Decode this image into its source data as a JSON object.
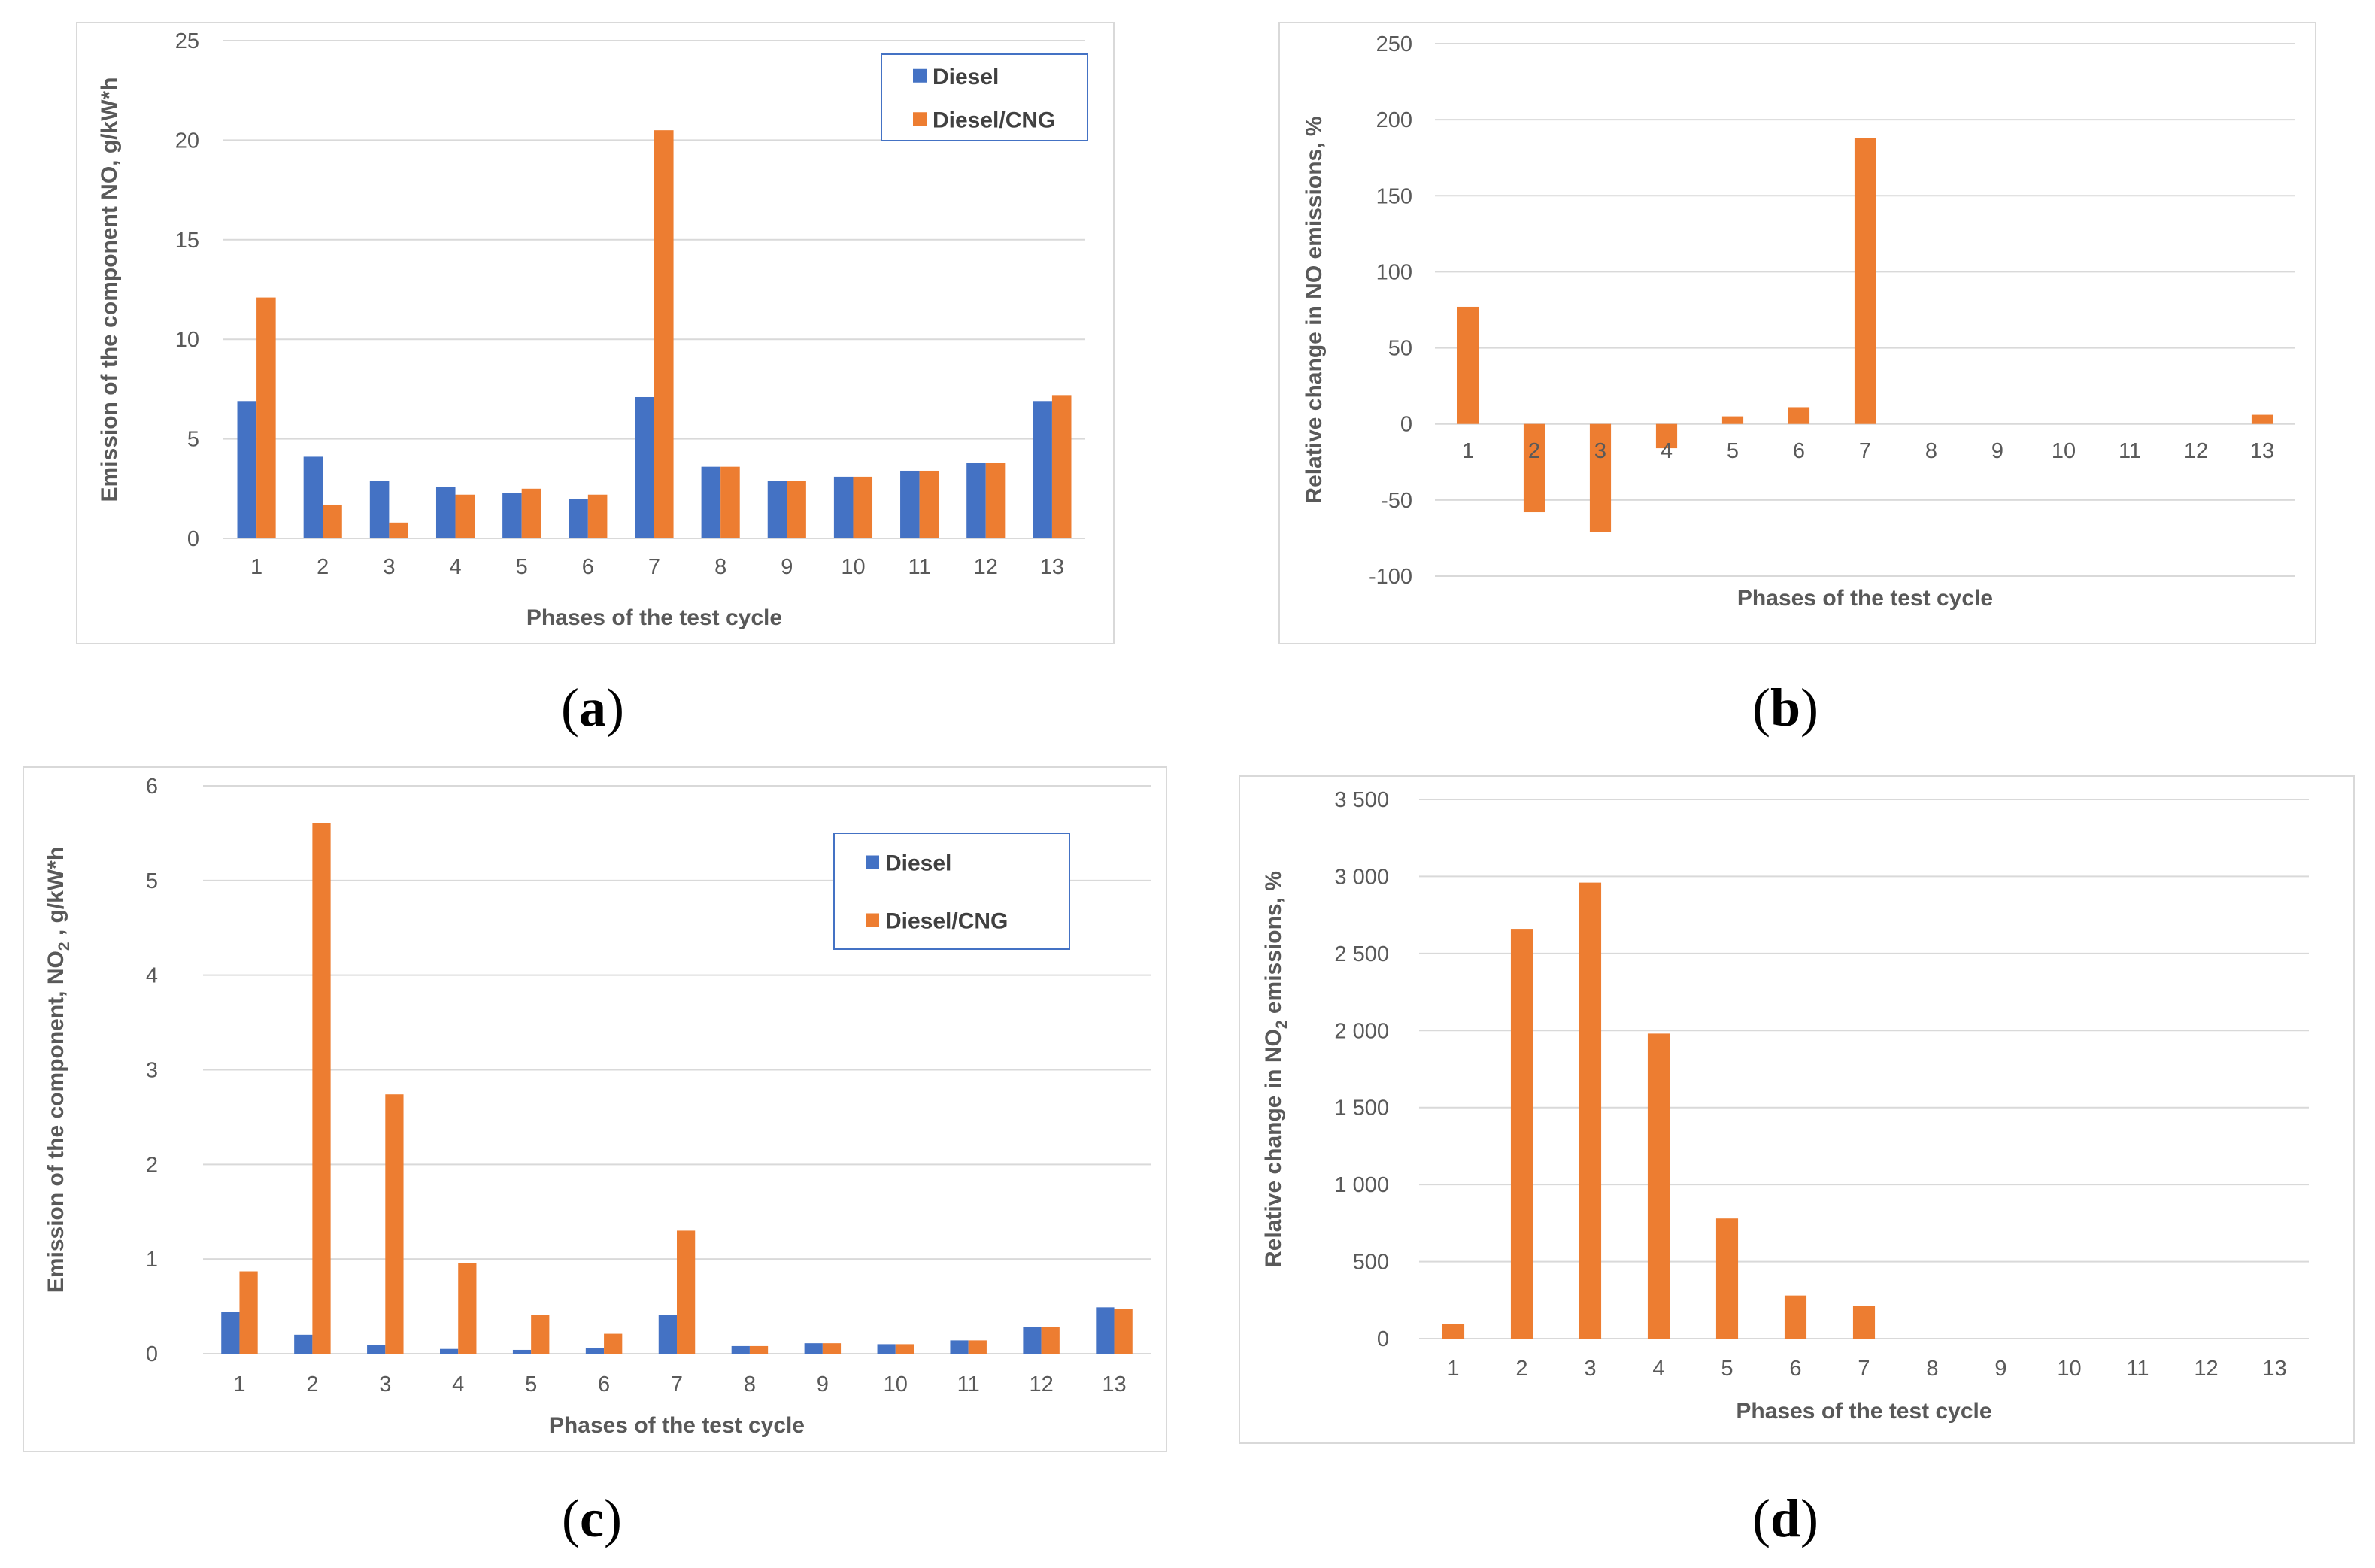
{
  "colors": {
    "diesel": "#4472C4",
    "dual": "#ED7D31",
    "grid": "#D9D9D9",
    "frame": "#D9D9D9",
    "legend_border": "#4472C4"
  },
  "panels": [
    "a",
    "b",
    "c",
    "d"
  ],
  "chart_data": [
    {
      "id": "a",
      "type": "bar",
      "ylabel": "Emission of the component NO, g/kW*h",
      "xlabel": "Phases of the test cycle",
      "categories": [
        "1",
        "2",
        "3",
        "4",
        "5",
        "6",
        "7",
        "8",
        "9",
        "10",
        "11",
        "12",
        "13"
      ],
      "ylim": [
        0,
        25
      ],
      "yticks": [
        0,
        5,
        10,
        15,
        20,
        25
      ],
      "ytick_labels": [
        "0",
        "5",
        "10",
        "15",
        "20",
        "25"
      ],
      "grid": true,
      "legend": "top-right",
      "series": [
        {
          "name": "Diesel",
          "color": "#4472C4",
          "values": [
            6.9,
            4.1,
            2.9,
            2.6,
            2.3,
            2.0,
            7.1,
            3.6,
            2.9,
            3.1,
            3.4,
            3.8,
            6.9
          ]
        },
        {
          "name": "Diesel/CNG",
          "color": "#ED7D31",
          "values": [
            12.1,
            1.7,
            0.8,
            2.2,
            2.5,
            2.2,
            20.5,
            3.6,
            2.9,
            3.1,
            3.4,
            3.8,
            7.2
          ]
        }
      ]
    },
    {
      "id": "b",
      "type": "bar",
      "ylabel": "Relative change in NO emissions, %",
      "xlabel": "Phases of the test cycle",
      "categories": [
        "1",
        "2",
        "3",
        "4",
        "5",
        "6",
        "7",
        "8",
        "9",
        "10",
        "11",
        "12",
        "13"
      ],
      "ylim": [
        -100,
        250
      ],
      "yticks": [
        -100,
        -50,
        0,
        50,
        100,
        150,
        200,
        250
      ],
      "ytick_labels": [
        "-100",
        "-50",
        "0",
        "50",
        "100",
        "150",
        "200",
        "250"
      ],
      "grid": true,
      "series": [
        {
          "color": "#ED7D31",
          "values": [
            77,
            -58,
            -71,
            -16,
            5,
            11,
            188,
            0,
            0,
            0,
            0,
            0,
            6
          ]
        }
      ]
    },
    {
      "id": "c",
      "type": "bar",
      "ylabel": "Emission of the component, NO",
      "ylabel_sub": "2",
      "ylabel_suffix": " , g/kW*h",
      "xlabel": "Phases of the test cycle",
      "categories": [
        "1",
        "2",
        "3",
        "4",
        "5",
        "6",
        "7",
        "8",
        "9",
        "10",
        "11",
        "12",
        "13"
      ],
      "ylim": [
        0,
        6
      ],
      "yticks": [
        0,
        1,
        2,
        3,
        4,
        5,
        6
      ],
      "ytick_labels": [
        "0",
        "1",
        "2",
        "3",
        "4",
        "5",
        "6"
      ],
      "grid": true,
      "legend": "top-right",
      "series": [
        {
          "name": "Diesel",
          "color": "#4472C4",
          "values": [
            0.44,
            0.2,
            0.09,
            0.05,
            0.04,
            0.06,
            0.41,
            0.08,
            0.11,
            0.1,
            0.14,
            0.28,
            0.49
          ]
        },
        {
          "name": "Diesel/CNG",
          "color": "#ED7D31",
          "values": [
            0.87,
            5.61,
            2.74,
            0.96,
            0.41,
            0.21,
            1.3,
            0.08,
            0.11,
            0.1,
            0.14,
            0.28,
            0.47
          ]
        }
      ]
    },
    {
      "id": "d",
      "type": "bar",
      "ylabel": "Relative change in NO",
      "ylabel_sub": "2",
      "ylabel_suffix": " emissions,  %",
      "xlabel": "Phases of the test cycle",
      "categories": [
        "1",
        "2",
        "3",
        "4",
        "5",
        "6",
        "7",
        "8",
        "9",
        "10",
        "11",
        "12",
        "13"
      ],
      "ylim": [
        0,
        3500
      ],
      "yticks": [
        0,
        500,
        1000,
        1500,
        2000,
        2500,
        3000,
        3500
      ],
      "ytick_labels": [
        "0",
        "500",
        "1 000",
        "1 500",
        "2 000",
        "2 500",
        "3 000",
        "3 500"
      ],
      "grid": true,
      "series": [
        {
          "color": "#ED7D31",
          "values": [
            95,
            2660,
            2960,
            1980,
            780,
            280,
            210,
            0,
            0,
            0,
            0,
            0,
            0
          ]
        }
      ]
    }
  ]
}
